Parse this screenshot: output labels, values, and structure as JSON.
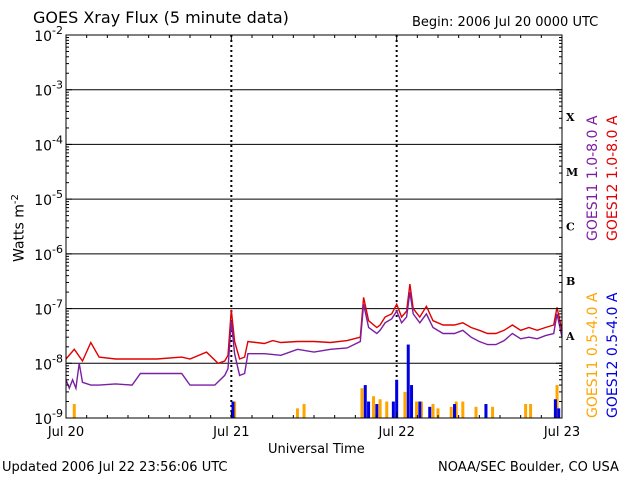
{
  "header": {
    "title": "GOES Xray Flux (5 minute data)",
    "begin_label": "Begin:  2006 Jul 20 0000 UTC"
  },
  "footer": {
    "updated": "Updated 2006 Jul 22 23:56:06 UTC",
    "credit": "NOAA/SEC Boulder, CO USA"
  },
  "chart_data": {
    "type": "line",
    "title": "GOES Xray Flux (5 minute data)",
    "xlabel": "Universal Time",
    "ylabel": "Watts m",
    "ylabel_superscript": "-2",
    "yscale": "log",
    "ylim": [
      1e-09,
      0.01
    ],
    "xlim": [
      "2006-07-20T00:00",
      "2006-07-23T00:00"
    ],
    "x_ticks": [
      "Jul 20",
      "Jul 21",
      "Jul 22",
      "Jul 23"
    ],
    "y_ticks": [
      {
        "base": "10",
        "exp": "-9"
      },
      {
        "base": "10",
        "exp": "-8"
      },
      {
        "base": "10",
        "exp": "-7"
      },
      {
        "base": "10",
        "exp": "-6"
      },
      {
        "base": "10",
        "exp": "-5"
      },
      {
        "base": "10",
        "exp": "-4"
      },
      {
        "base": "10",
        "exp": "-3"
      },
      {
        "base": "10",
        "exp": "-2"
      }
    ],
    "flare_classes": [
      {
        "label": "A",
        "exp": -8
      },
      {
        "label": "B",
        "exp": -7
      },
      {
        "label": "C",
        "exp": -6
      },
      {
        "label": "M",
        "exp": -5
      },
      {
        "label": "X",
        "exp": -4
      }
    ],
    "legend": [
      {
        "name": "GOES11 1.0-8.0 A",
        "color": "#7b1fa2",
        "group": "long"
      },
      {
        "name": "GOES12 1.0-8.0 A",
        "color": "#e00000",
        "group": "long"
      },
      {
        "name": "GOES11 0.5-4.0 A",
        "color": "#ffa500",
        "group": "short"
      },
      {
        "name": "GOES12 0.5-4.0 A",
        "color": "#0000e0",
        "group": "short"
      }
    ],
    "series": [
      {
        "name": "GOES12 1.0-8.0 A",
        "color": "#e00000",
        "points": [
          [
            0.0,
            1.2e-08
          ],
          [
            0.05,
            1.8e-08
          ],
          [
            0.1,
            1.1e-08
          ],
          [
            0.15,
            2.4e-08
          ],
          [
            0.2,
            1.3e-08
          ],
          [
            0.3,
            1.2e-08
          ],
          [
            0.4,
            1.2e-08
          ],
          [
            0.55,
            1.2e-08
          ],
          [
            0.7,
            1.3e-08
          ],
          [
            0.75,
            1.2e-08
          ],
          [
            0.85,
            1.6e-08
          ],
          [
            0.92,
            1e-08
          ],
          [
            0.96,
            1.1e-08
          ],
          [
            0.98,
            1.4e-08
          ],
          [
            1.0,
            9.5e-08
          ],
          [
            1.02,
            2.5e-08
          ],
          [
            1.05,
            1.2e-08
          ],
          [
            1.08,
            1.3e-08
          ],
          [
            1.1,
            2.5e-08
          ],
          [
            1.2,
            2.3e-08
          ],
          [
            1.25,
            2.6e-08
          ],
          [
            1.3,
            2.4e-08
          ],
          [
            1.4,
            2.5e-08
          ],
          [
            1.5,
            2.5e-08
          ],
          [
            1.6,
            2.4e-08
          ],
          [
            1.7,
            2.6e-08
          ],
          [
            1.78,
            3e-08
          ],
          [
            1.8,
            1.6e-07
          ],
          [
            1.83,
            6e-08
          ],
          [
            1.88,
            4.5e-08
          ],
          [
            1.9,
            5e-08
          ],
          [
            1.93,
            7e-08
          ],
          [
            1.97,
            8e-08
          ],
          [
            2.0,
            1.2e-07
          ],
          [
            2.03,
            7e-08
          ],
          [
            2.06,
            9e-08
          ],
          [
            2.08,
            2.8e-07
          ],
          [
            2.1,
            1e-07
          ],
          [
            2.14,
            7e-08
          ],
          [
            2.18,
            1.1e-07
          ],
          [
            2.22,
            6e-08
          ],
          [
            2.28,
            5e-08
          ],
          [
            2.35,
            5e-08
          ],
          [
            2.4,
            5.5e-08
          ],
          [
            2.45,
            4.5e-08
          ],
          [
            2.5,
            4e-08
          ],
          [
            2.55,
            3.5e-08
          ],
          [
            2.6,
            3.5e-08
          ],
          [
            2.65,
            4e-08
          ],
          [
            2.7,
            5e-08
          ],
          [
            2.75,
            4e-08
          ],
          [
            2.8,
            4.5e-08
          ],
          [
            2.85,
            4e-08
          ],
          [
            2.9,
            4.5e-08
          ],
          [
            2.95,
            5e-08
          ],
          [
            2.97,
            1.05e-07
          ],
          [
            3.0,
            4e-08
          ]
        ]
      },
      {
        "name": "GOES11 1.0-8.0 A",
        "color": "#7b1fa2",
        "points": [
          [
            0.0,
            5e-09
          ],
          [
            0.02,
            3.5e-09
          ],
          [
            0.04,
            5e-09
          ],
          [
            0.06,
            3.5e-09
          ],
          [
            0.08,
            1e-08
          ],
          [
            0.1,
            4.5e-09
          ],
          [
            0.15,
            4e-09
          ],
          [
            0.2,
            4e-09
          ],
          [
            0.3,
            4.2e-09
          ],
          [
            0.4,
            4e-09
          ],
          [
            0.45,
            6.5e-09
          ],
          [
            0.55,
            6.5e-09
          ],
          [
            0.7,
            6.5e-09
          ],
          [
            0.75,
            4e-09
          ],
          [
            0.85,
            4e-09
          ],
          [
            0.9,
            4e-09
          ],
          [
            0.96,
            6e-09
          ],
          [
            0.98,
            8e-09
          ],
          [
            1.0,
            6e-08
          ],
          [
            1.02,
            1.5e-08
          ],
          [
            1.05,
            6e-09
          ],
          [
            1.08,
            6.5e-09
          ],
          [
            1.1,
            1.5e-08
          ],
          [
            1.2,
            1.5e-08
          ],
          [
            1.3,
            1.4e-08
          ],
          [
            1.4,
            1.8e-08
          ],
          [
            1.5,
            1.6e-08
          ],
          [
            1.6,
            1.8e-08
          ],
          [
            1.7,
            1.9e-08
          ],
          [
            1.78,
            2.5e-08
          ],
          [
            1.8,
            1.2e-07
          ],
          [
            1.83,
            4.5e-08
          ],
          [
            1.88,
            3.5e-08
          ],
          [
            1.9,
            4e-08
          ],
          [
            1.93,
            5.5e-08
          ],
          [
            1.97,
            6.5e-08
          ],
          [
            2.0,
            9e-08
          ],
          [
            2.03,
            5.5e-08
          ],
          [
            2.06,
            7e-08
          ],
          [
            2.08,
            2e-07
          ],
          [
            2.1,
            8e-08
          ],
          [
            2.14,
            5.5e-08
          ],
          [
            2.18,
            8e-08
          ],
          [
            2.22,
            4.5e-08
          ],
          [
            2.28,
            3.5e-08
          ],
          [
            2.35,
            3.5e-08
          ],
          [
            2.4,
            4e-08
          ],
          [
            2.45,
            3e-08
          ],
          [
            2.5,
            2.5e-08
          ],
          [
            2.55,
            2.2e-08
          ],
          [
            2.6,
            2.2e-08
          ],
          [
            2.65,
            2.6e-08
          ],
          [
            2.7,
            3.5e-08
          ],
          [
            2.75,
            2.8e-08
          ],
          [
            2.8,
            3e-08
          ],
          [
            2.85,
            2.8e-08
          ],
          [
            2.9,
            3.2e-08
          ],
          [
            2.95,
            3.5e-08
          ],
          [
            2.97,
            8e-08
          ],
          [
            3.0,
            3e-08
          ]
        ]
      }
    ],
    "spikes": [
      {
        "name": "GOES11 0.5-4.0 A",
        "color": "#ffa500",
        "events": [
          [
            0.05,
            1.8e-09
          ],
          [
            1.02,
            2e-09
          ],
          [
            1.4,
            1.5e-09
          ],
          [
            1.44,
            1.8e-09
          ],
          [
            1.79,
            3.5e-09
          ],
          [
            1.86,
            2.5e-09
          ],
          [
            1.9,
            2.2e-09
          ],
          [
            1.94,
            2e-09
          ],
          [
            2.05,
            3e-09
          ],
          [
            2.12,
            2e-09
          ],
          [
            2.15,
            2e-09
          ],
          [
            2.22,
            1.8e-09
          ],
          [
            2.25,
            1.5e-09
          ],
          [
            2.33,
            1.6e-09
          ],
          [
            2.36,
            2e-09
          ],
          [
            2.4,
            2e-09
          ],
          [
            2.48,
            1.6e-09
          ],
          [
            2.54,
            1.8e-09
          ],
          [
            2.58,
            1.6e-09
          ],
          [
            2.78,
            1.8e-09
          ],
          [
            2.81,
            1.8e-09
          ],
          [
            2.97,
            4e-09
          ]
        ]
      },
      {
        "name": "GOES12 0.5-4.0 A",
        "color": "#0000e0",
        "events": [
          [
            1.01,
            2e-09
          ],
          [
            1.81,
            4e-09
          ],
          [
            1.83,
            2e-09
          ],
          [
            1.88,
            1.8e-09
          ],
          [
            1.98,
            2e-09
          ],
          [
            2.0,
            5e-09
          ],
          [
            2.07,
            2.2e-08
          ],
          [
            2.09,
            4e-09
          ],
          [
            2.14,
            2e-09
          ],
          [
            2.2,
            1.6e-09
          ],
          [
            2.35,
            1.8e-09
          ],
          [
            2.54,
            1.8e-09
          ],
          [
            2.96,
            2.2e-09
          ],
          [
            2.98,
            1.5e-09
          ]
        ]
      }
    ]
  }
}
